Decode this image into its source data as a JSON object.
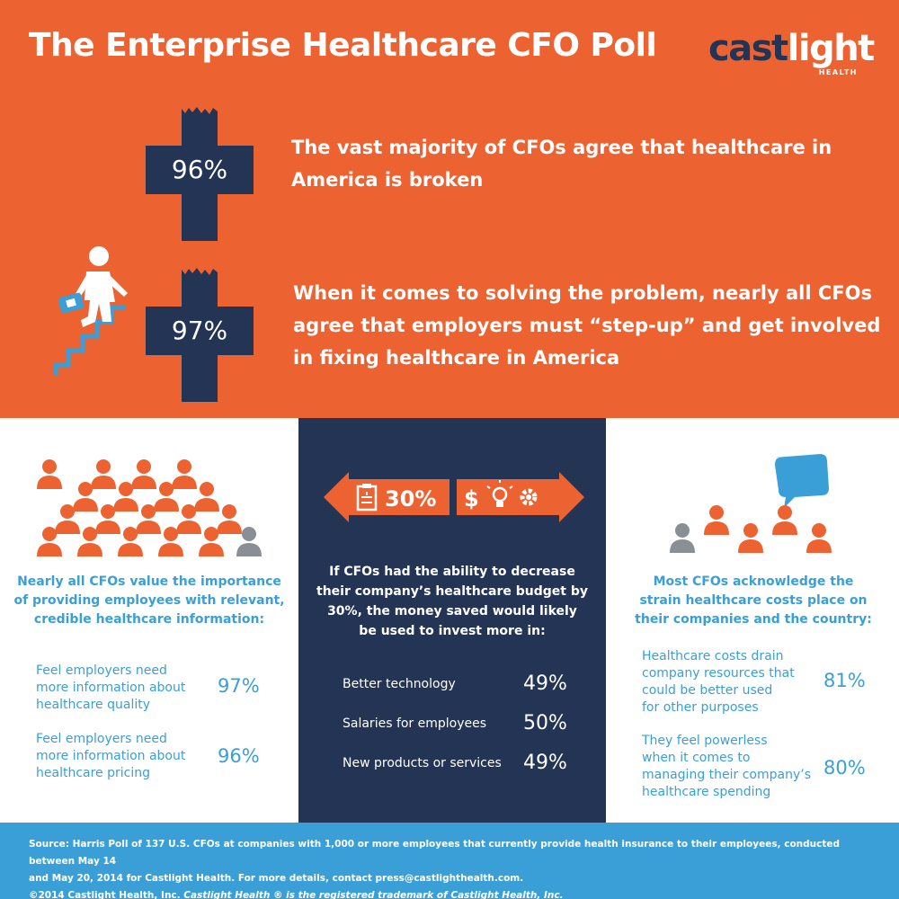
{
  "header": {
    "title": "The Enterprise Healthcare CFO Poll",
    "logo_text_main": "cast",
    "logo_text_light": "light",
    "logo_sub": "HEALTH"
  },
  "stat1": {
    "value": "96%",
    "text_line1": "The vast majority of CFOs agree that healthcare in",
    "text_line2": "America is broken"
  },
  "stat2": {
    "value": "97%",
    "text_line1": "When it comes to solving the problem, nearly all CFOs",
    "text_line2": "agree that employers must “step-up” and get involved",
    "text_line3": "in fixing healthcare in America"
  },
  "left": {
    "heading_line1": "Nearly all CFOs value the importance",
    "heading_line2": "of providing employees with relevant,",
    "heading_line3": "credible healthcare information:",
    "rows": [
      {
        "line1": "Feel employers need",
        "line2": "more information about",
        "line3": "healthcare quality",
        "value": "97%"
      },
      {
        "line1": "Feel employers need",
        "line2": "more information about",
        "line3": "healthcare pricing",
        "value": "96%"
      }
    ]
  },
  "middle": {
    "banner_value": "30%",
    "banner_symbol": "$",
    "heading_line1": "If CFOs had the ability to decrease",
    "heading_line2": "their company’s healthcare budget by",
    "heading_line3": "30%, the money saved would likely",
    "heading_line4": "be used to invest more in:",
    "rows": [
      {
        "label": "Better technology",
        "value": "49%"
      },
      {
        "label": "Salaries for employees",
        "value": "50%"
      },
      {
        "label": "New products or services",
        "value": "49%"
      }
    ]
  },
  "right": {
    "heading_line1": "Most CFOs acknowledge the",
    "heading_line2": "strain healthcare costs place on",
    "heading_line3": "their companies and the country:",
    "rows": [
      {
        "line1": "Healthcare costs drain",
        "line2": "company resources that",
        "line3": "could be better used",
        "line4": "for other purposes",
        "value": "81%"
      },
      {
        "line1": "They feel powerless",
        "line2": "when it comes to",
        "line3": "managing their company’s",
        "line4": "healthcare spending",
        "value": "80%"
      }
    ]
  },
  "footer": {
    "line1": "Source: Harris Poll of 137 U.S. CFOs at companies with 1,000 or more employees that currently provide health insurance to their employees, conducted between May 14",
    "line2": "and May 20, 2014 for Castlight Health. For more details, contact press@castlighthealth.com.",
    "line3_plain": "©2014 Castlight Health, Inc. ",
    "line3_italic": "Castlight Health ® is the registered trademark of Castlight Health, Inc."
  },
  "colors": {
    "orange": "#ec6231",
    "navy": "#233455",
    "blue": "#3a9fd6",
    "gray": "#8a8f96"
  }
}
